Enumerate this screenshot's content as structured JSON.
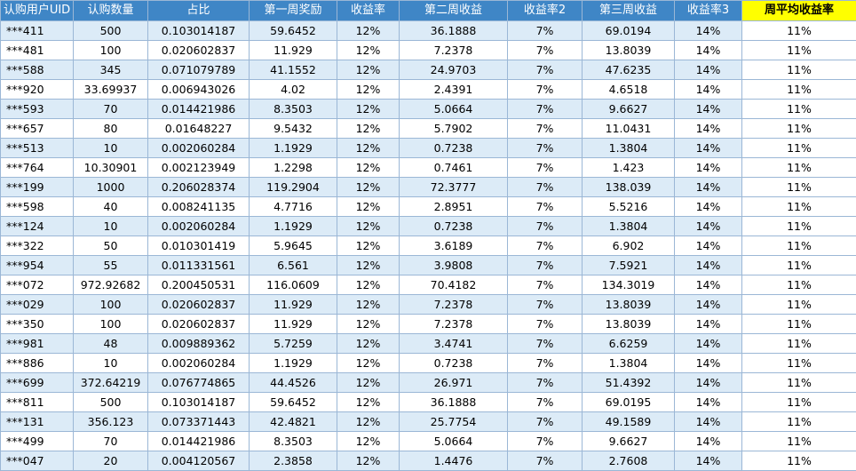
{
  "headers": [
    "认购用户UID",
    "认购数量",
    "占比",
    "第一周奖励",
    "收益率",
    "第二周收益",
    "收益率2",
    "第三周收益",
    "收益率3",
    "周平均收益率"
  ],
  "rows": [
    [
      "***411",
      "500",
      "0.103014187",
      "59.6452",
      "12%",
      "36.1888",
      "7%",
      "69.0194",
      "14%",
      "11%"
    ],
    [
      "***481",
      "100",
      "0.020602837",
      "11.929",
      "12%",
      "7.2378",
      "7%",
      "13.8039",
      "14%",
      "11%"
    ],
    [
      "***588",
      "345",
      "0.071079789",
      "41.1552",
      "12%",
      "24.9703",
      "7%",
      "47.6235",
      "14%",
      "11%"
    ],
    [
      "***920",
      "33.69937",
      "0.006943026",
      "4.02",
      "12%",
      "2.4391",
      "7%",
      "4.6518",
      "14%",
      "11%"
    ],
    [
      "***593",
      "70",
      "0.014421986",
      "8.3503",
      "12%",
      "5.0664",
      "7%",
      "9.6627",
      "14%",
      "11%"
    ],
    [
      "***657",
      "80",
      "0.01648227",
      "9.5432",
      "12%",
      "5.7902",
      "7%",
      "11.0431",
      "14%",
      "11%"
    ],
    [
      "***513",
      "10",
      "0.002060284",
      "1.1929",
      "12%",
      "0.7238",
      "7%",
      "1.3804",
      "14%",
      "11%"
    ],
    [
      "***764",
      "10.30901",
      "0.002123949",
      "1.2298",
      "12%",
      "0.7461",
      "7%",
      "1.423",
      "14%",
      "11%"
    ],
    [
      "***199",
      "1000",
      "0.206028374",
      "119.2904",
      "12%",
      "72.3777",
      "7%",
      "138.039",
      "14%",
      "11%"
    ],
    [
      "***598",
      "40",
      "0.008241135",
      "4.7716",
      "12%",
      "2.8951",
      "7%",
      "5.5216",
      "14%",
      "11%"
    ],
    [
      "***124",
      "10",
      "0.002060284",
      "1.1929",
      "12%",
      "0.7238",
      "7%",
      "1.3804",
      "14%",
      "11%"
    ],
    [
      "***322",
      "50",
      "0.010301419",
      "5.9645",
      "12%",
      "3.6189",
      "7%",
      "6.902",
      "14%",
      "11%"
    ],
    [
      "***954",
      "55",
      "0.011331561",
      "6.561",
      "12%",
      "3.9808",
      "7%",
      "7.5921",
      "14%",
      "11%"
    ],
    [
      "***072",
      "972.92682",
      "0.200450531",
      "116.0609",
      "12%",
      "70.4182",
      "7%",
      "134.3019",
      "14%",
      "11%"
    ],
    [
      "***029",
      "100",
      "0.020602837",
      "11.929",
      "12%",
      "7.2378",
      "7%",
      "13.8039",
      "14%",
      "11%"
    ],
    [
      "***350",
      "100",
      "0.020602837",
      "11.929",
      "12%",
      "7.2378",
      "7%",
      "13.8039",
      "14%",
      "11%"
    ],
    [
      "***981",
      "48",
      "0.009889362",
      "5.7259",
      "12%",
      "3.4741",
      "7%",
      "6.6259",
      "14%",
      "11%"
    ],
    [
      "***886",
      "10",
      "0.002060284",
      "1.1929",
      "12%",
      "0.7238",
      "7%",
      "1.3804",
      "14%",
      "11%"
    ],
    [
      "***699",
      "372.64219",
      "0.076774865",
      "44.4526",
      "12%",
      "26.971",
      "7%",
      "51.4392",
      "14%",
      "11%"
    ],
    [
      "***811",
      "500",
      "0.103014187",
      "59.6452",
      "12%",
      "36.1888",
      "7%",
      "69.0195",
      "14%",
      "11%"
    ],
    [
      "***131",
      "356.123",
      "0.073371443",
      "42.4821",
      "12%",
      "25.7754",
      "7%",
      "49.1589",
      "14%",
      "11%"
    ],
    [
      "***499",
      "70",
      "0.014421986",
      "8.3503",
      "12%",
      "5.0664",
      "7%",
      "9.6627",
      "14%",
      "11%"
    ],
    [
      "***047",
      "20",
      "0.004120567",
      "2.3858",
      "12%",
      "1.4476",
      "7%",
      "2.7608",
      "14%",
      "11%"
    ]
  ]
}
